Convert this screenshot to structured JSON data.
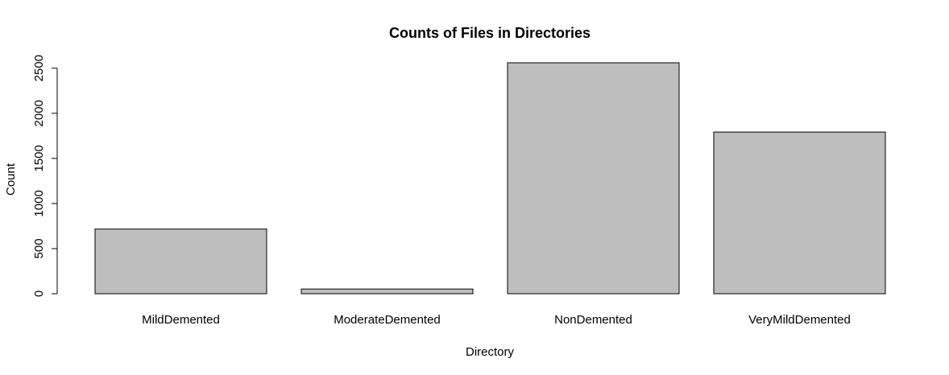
{
  "chart_data": {
    "type": "bar",
    "title": "Counts of Files in Directories",
    "xlabel": "Directory",
    "ylabel": "Count",
    "categories": [
      "MildDemented",
      "ModerateDemented",
      "NonDemented",
      "VeryMildDemented"
    ],
    "values": [
      717,
      52,
      2560,
      1792
    ],
    "ylim": [
      0,
      2560
    ],
    "yticks": [
      0,
      500,
      1000,
      1500,
      2000,
      2500
    ],
    "ytick_labels": [
      "0",
      "500",
      "1000",
      "1500",
      "2000",
      "2500"
    ],
    "bar_color": "#bebebe",
    "grid": false,
    "legend": "none"
  }
}
